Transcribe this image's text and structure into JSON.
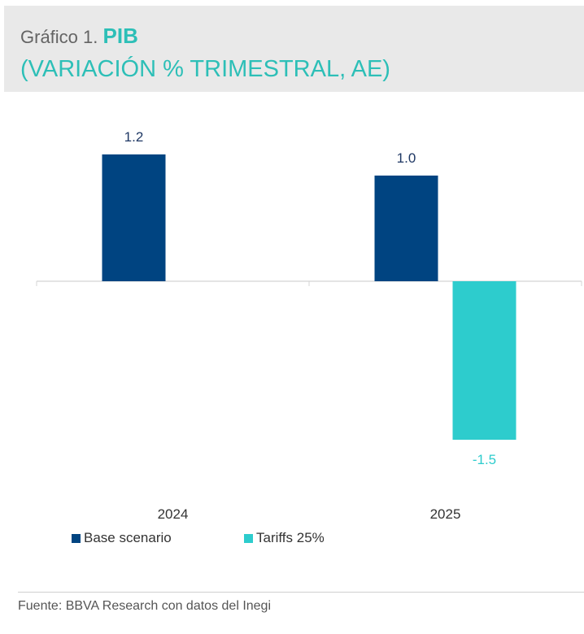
{
  "header": {
    "prefix": "Gráfico 1.",
    "title": "PIB",
    "subtitle": "(VARIACIÓN % TRIMESTRAL, AE)"
  },
  "source": "Fuente: BBVA Research con datos del Inegi",
  "colors": {
    "title_accent": "#2dbfb7",
    "base": "#004481",
    "tariffs": "#2dcccd"
  },
  "chart_data": {
    "type": "bar",
    "categories": [
      "2024",
      "2025"
    ],
    "series": [
      {
        "name": "Base scenario",
        "values": [
          1.2,
          1.0
        ],
        "labels": [
          "1.2",
          "1.0"
        ],
        "color": "#004481"
      },
      {
        "name": "Tariffs 25%",
        "values": [
          null,
          -1.5
        ],
        "labels": [
          "",
          "-1.5"
        ],
        "color": "#2dcccd"
      }
    ],
    "ylim": [
      -1.5,
      1.2
    ],
    "grid": false,
    "legend_position": "bottom-left"
  }
}
